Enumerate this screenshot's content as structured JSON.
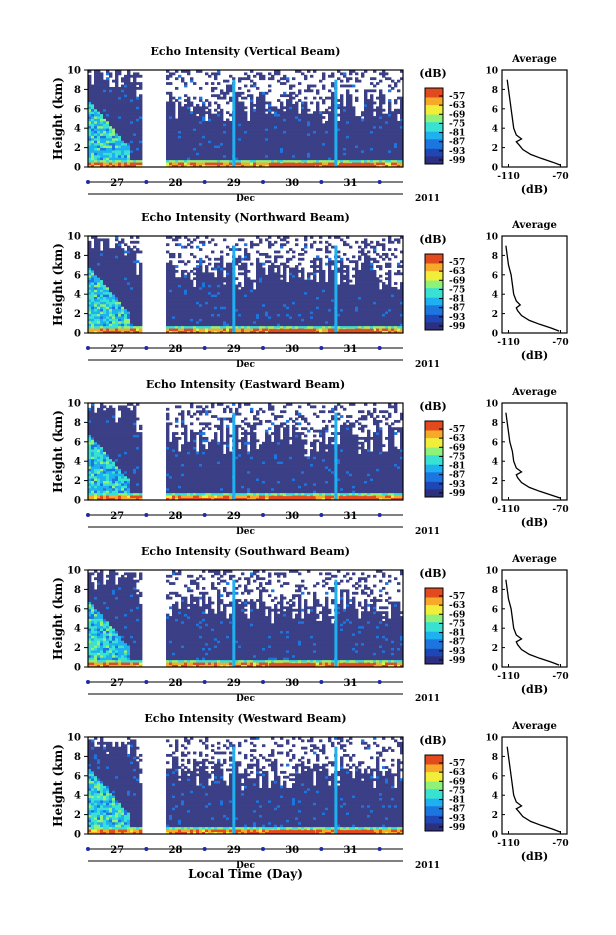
{
  "colors": {
    "background": "#3b3f86",
    "noData": "#ffffff",
    "colormap": [
      "#2d2f7f",
      "#1f46b5",
      "#1d76e0",
      "#1fb0f0",
      "#39e1d2",
      "#8ef27a",
      "#f0ee3a",
      "#f7a92a",
      "#e24a1f"
    ]
  },
  "colorbar": {
    "unit": "(dB)",
    "ticks": [
      "-57",
      "-63",
      "-69",
      "-75",
      "-81",
      "-87",
      "-93",
      "-99"
    ]
  },
  "average_title": "Average",
  "average_xlabel": "(dB)",
  "xaxis": {
    "month": "Dec",
    "year": "2011",
    "label": "Local Time (Day)"
  },
  "chart_data": [
    {
      "type": "heatmap",
      "title": "Echo Intensity (Vertical Beam)",
      "xlabel": "Local Time (Day)",
      "ylabel": "Height (km)",
      "x_ticks": [
        "27",
        "28",
        "29",
        "30",
        "31"
      ],
      "y_ticks": [
        "0",
        "2",
        "4",
        "6",
        "8",
        "10"
      ],
      "xlim": [
        26.5,
        31.9
      ],
      "ylim": [
        0,
        10
      ],
      "clim": [
        -99,
        -57
      ],
      "gap_days": [
        27.45,
        27.85
      ],
      "average_profile": {
        "xlim": [
          -115,
          -65
        ],
        "x_ticks": [
          "-110",
          "-70"
        ],
        "y_ticks": [
          "0",
          "2",
          "4",
          "6",
          "8",
          "10"
        ],
        "height_km": [
          0.2,
          0.5,
          0.9,
          1.3,
          1.8,
          2.3,
          2.6,
          2.9,
          3.3,
          4,
          5,
          6,
          7,
          8,
          9
        ],
        "intensity_db": [
          -70,
          -76,
          -85,
          -93,
          -99,
          -102,
          -104,
          -100,
          -104,
          -106,
          -107,
          -108,
          -109,
          -110,
          -111
        ]
      }
    },
    {
      "type": "heatmap",
      "title": "Echo Intensity (Northward Beam)",
      "xlabel": "Local Time (Day)",
      "ylabel": "Height (km)",
      "x_ticks": [
        "27",
        "28",
        "29",
        "30",
        "31"
      ],
      "y_ticks": [
        "0",
        "2",
        "4",
        "6",
        "8",
        "10"
      ],
      "xlim": [
        26.5,
        31.9
      ],
      "ylim": [
        0,
        10
      ],
      "clim": [
        -99,
        -57
      ],
      "gap_days": [
        27.45,
        27.85
      ],
      "average_profile": {
        "xlim": [
          -115,
          -65
        ],
        "x_ticks": [
          "-110",
          "-70"
        ],
        "y_ticks": [
          "0",
          "2",
          "4",
          "6",
          "8",
          "10"
        ],
        "height_km": [
          0.2,
          0.5,
          0.9,
          1.3,
          1.8,
          2.3,
          2.6,
          2.9,
          3.3,
          4,
          5,
          6,
          7,
          8,
          9
        ],
        "intensity_db": [
          -71,
          -77,
          -86,
          -94,
          -100,
          -103,
          -104,
          -101,
          -104,
          -106,
          -107,
          -108,
          -110,
          -111,
          -112
        ]
      }
    },
    {
      "type": "heatmap",
      "title": "Echo Intensity (Eastward Beam)",
      "xlabel": "Local Time (Day)",
      "ylabel": "Height (km)",
      "x_ticks": [
        "27",
        "28",
        "29",
        "30",
        "31"
      ],
      "y_ticks": [
        "0",
        "2",
        "4",
        "6",
        "8",
        "10"
      ],
      "xlim": [
        26.5,
        31.9
      ],
      "ylim": [
        0,
        10
      ],
      "clim": [
        -99,
        -57
      ],
      "gap_days": [
        27.45,
        27.85
      ],
      "average_profile": {
        "xlim": [
          -115,
          -65
        ],
        "x_ticks": [
          "-110",
          "-70"
        ],
        "y_ticks": [
          "0",
          "2",
          "4",
          "6",
          "8",
          "10"
        ],
        "height_km": [
          0.2,
          0.5,
          0.9,
          1.3,
          1.8,
          2.3,
          2.6,
          2.9,
          3.3,
          4,
          5,
          6,
          7,
          8,
          9
        ],
        "intensity_db": [
          -70,
          -77,
          -86,
          -94,
          -100,
          -103,
          -104,
          -100,
          -104,
          -106,
          -107,
          -109,
          -110,
          -111,
          -112
        ]
      }
    },
    {
      "type": "heatmap",
      "title": "Echo Intensity (Southward Beam)",
      "xlabel": "Local Time (Day)",
      "ylabel": "Height (km)",
      "x_ticks": [
        "27",
        "28",
        "29",
        "30",
        "31"
      ],
      "y_ticks": [
        "0",
        "2",
        "4",
        "6",
        "8",
        "10"
      ],
      "xlim": [
        26.5,
        31.9
      ],
      "ylim": [
        0,
        10
      ],
      "clim": [
        -99,
        -57
      ],
      "gap_days": [
        27.45,
        27.85
      ],
      "average_profile": {
        "xlim": [
          -115,
          -65
        ],
        "x_ticks": [
          "-110",
          "-70"
        ],
        "y_ticks": [
          "0",
          "2",
          "4",
          "6",
          "8",
          "10"
        ],
        "height_km": [
          0.2,
          0.5,
          0.9,
          1.3,
          1.8,
          2.3,
          2.6,
          2.9,
          3.3,
          4,
          5,
          6,
          7,
          8,
          9
        ],
        "intensity_db": [
          -71,
          -77,
          -86,
          -94,
          -100,
          -103,
          -104,
          -100,
          -104,
          -106,
          -107,
          -108,
          -110,
          -111,
          -112
        ]
      }
    },
    {
      "type": "heatmap",
      "title": "Echo Intensity (Westward Beam)",
      "xlabel": "Local Time (Day)",
      "ylabel": "Height (km)",
      "x_ticks": [
        "27",
        "28",
        "29",
        "30",
        "31"
      ],
      "y_ticks": [
        "0",
        "2",
        "4",
        "6",
        "8",
        "10"
      ],
      "xlim": [
        26.5,
        31.9
      ],
      "ylim": [
        0,
        10
      ],
      "clim": [
        -99,
        -57
      ],
      "gap_days": [
        27.45,
        27.85
      ],
      "average_profile": {
        "xlim": [
          -115,
          -65
        ],
        "x_ticks": [
          "-110",
          "-70"
        ],
        "y_ticks": [
          "0",
          "2",
          "4",
          "6",
          "8",
          "10"
        ],
        "height_km": [
          0.2,
          0.5,
          0.9,
          1.3,
          1.8,
          2.3,
          2.6,
          2.9,
          3.3,
          4,
          5,
          6,
          7,
          8,
          9
        ],
        "intensity_db": [
          -70,
          -76,
          -85,
          -93,
          -99,
          -102,
          -104,
          -100,
          -104,
          -106,
          -107,
          -108,
          -109,
          -110,
          -111
        ]
      }
    }
  ]
}
